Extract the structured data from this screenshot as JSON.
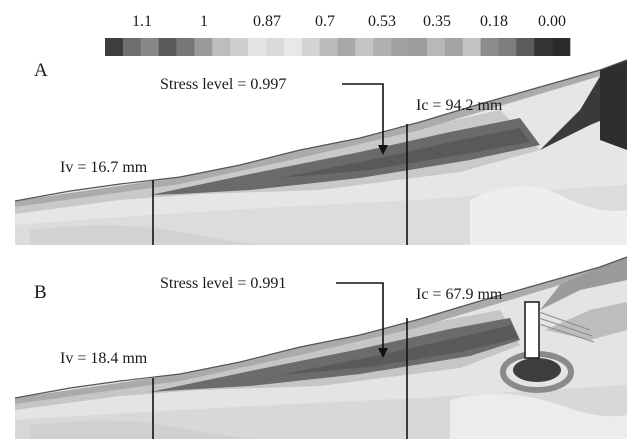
{
  "legend": {
    "tick_labels": [
      "1.1",
      "1",
      "0.87",
      "0.7",
      "0.53",
      "0.35",
      "0.18",
      "0.00"
    ],
    "swatches": [
      "#3d3d3d",
      "#6f6f6f",
      "#888888",
      "#5a5a5a",
      "#777777",
      "#9a9a9a",
      "#bdbdbd",
      "#cfcfcf",
      "#e4e4e4",
      "#dadada",
      "#e8e8e8",
      "#d4d4d4",
      "#bcbcbc",
      "#a8a8a8",
      "#c4c4c4",
      "#b0b0b0",
      "#a0a0a0",
      "#9d9d9d",
      "#b8b8b8",
      "#a4a4a4",
      "#c2c2c2",
      "#8c8c8c",
      "#7d7d7d",
      "#5c5c5c",
      "#333333",
      "#2b2b2b"
    ]
  },
  "panels": [
    {
      "panel_label": "A",
      "stress_label": "Stress level = 0.997",
      "ic_label": "Ic = 94.2 mm",
      "iv_label": "Iv = 16.7 mm",
      "has_pile": false
    },
    {
      "panel_label": "B",
      "stress_label": "Stress level = 0.991",
      "ic_label": "Ic = 67.9 mm",
      "iv_label": "Iv = 18.4 mm",
      "has_pile": true
    }
  ]
}
